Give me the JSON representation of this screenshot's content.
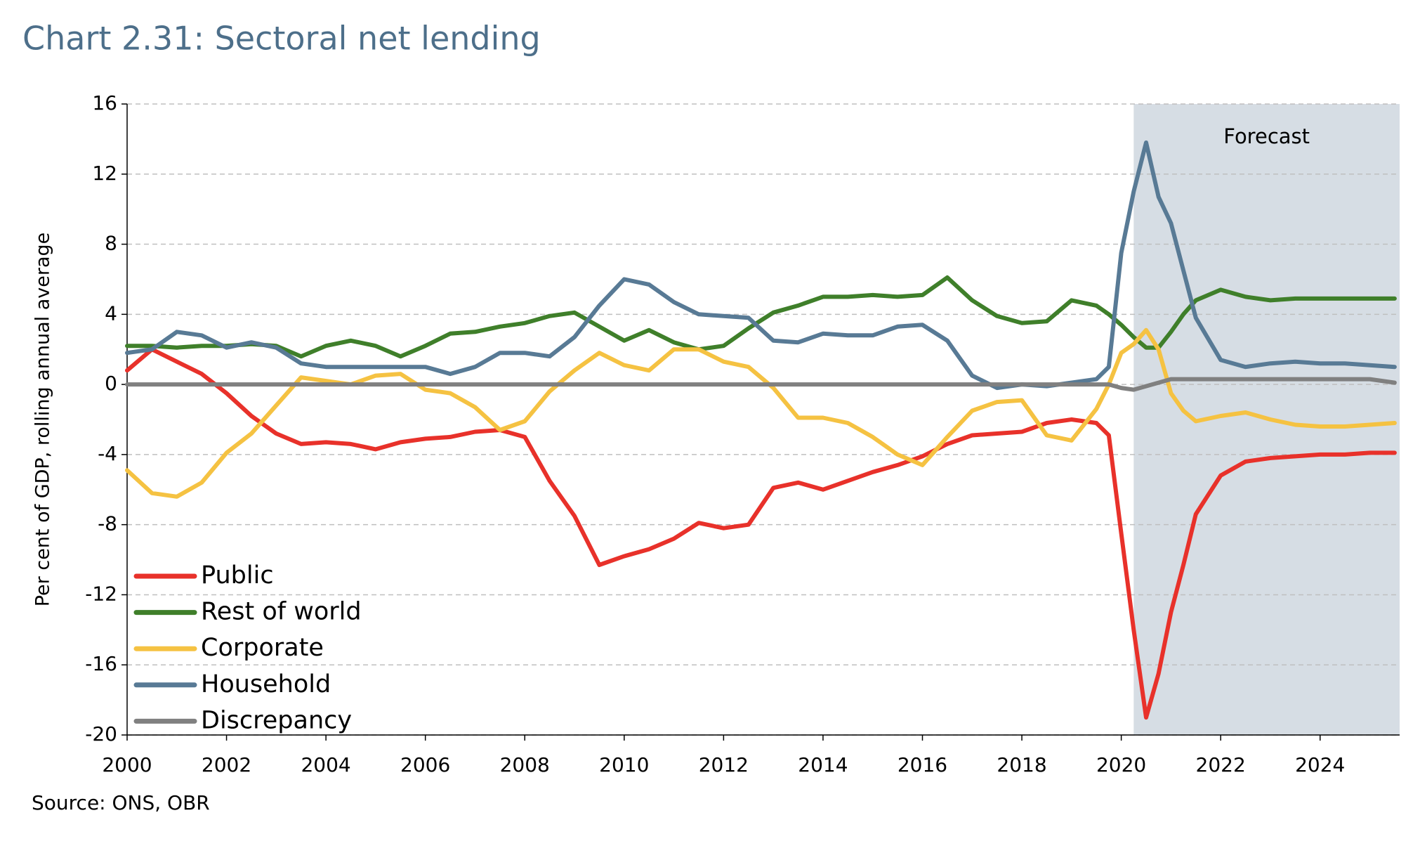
{
  "chart_data": {
    "type": "line",
    "title": "Chart 2.31: Sectoral net lending",
    "y_label": "Per cent of GDP,  rolling annual average",
    "source": "Source: ONS, OBR",
    "annotation": "Forecast",
    "forecast_start": 2020.25,
    "legend_position": "lower left",
    "grid": true,
    "xlim": [
      2000,
      2025.6
    ],
    "xticks": [
      2000,
      2002,
      2004,
      2006,
      2008,
      2010,
      2012,
      2014,
      2016,
      2018,
      2020,
      2022,
      2024
    ],
    "ylim": [
      -20,
      16
    ],
    "yticks": [
      -20,
      -16,
      -12,
      -8,
      -4,
      0,
      4,
      8,
      12,
      16
    ],
    "x": [
      2000,
      2000.5,
      2001,
      2001.5,
      2002,
      2002.5,
      2003,
      2003.5,
      2004,
      2004.5,
      2005,
      2005.5,
      2006,
      2006.5,
      2007,
      2007.5,
      2008,
      2008.5,
      2009,
      2009.5,
      2010,
      2010.5,
      2011,
      2011.5,
      2012,
      2012.5,
      2013,
      2013.5,
      2014,
      2014.5,
      2015,
      2015.5,
      2016,
      2016.5,
      2017,
      2017.5,
      2018,
      2018.5,
      2019,
      2019.5,
      2019.75,
      2020,
      2020.25,
      2020.5,
      2020.75,
      2021,
      2021.25,
      2021.5,
      2022,
      2022.5,
      2023,
      2023.5,
      2024,
      2024.5,
      2025,
      2025.5
    ],
    "series": [
      {
        "name": "Public",
        "color": "#e8312a",
        "values": [
          0.8,
          2.0,
          1.3,
          0.6,
          -0.5,
          -1.8,
          -2.8,
          -3.4,
          -3.3,
          -3.4,
          -3.7,
          -3.3,
          -3.1,
          -3.0,
          -2.7,
          -2.6,
          -3.0,
          -5.5,
          -7.5,
          -10.3,
          -9.8,
          -9.4,
          -8.8,
          -7.9,
          -8.2,
          -8.0,
          -5.9,
          -5.6,
          -6.0,
          -5.5,
          -5.0,
          -4.6,
          -4.1,
          -3.4,
          -2.9,
          -2.8,
          -2.7,
          -2.2,
          -2.0,
          -2.2,
          -2.9,
          -8.5,
          -14.0,
          -19.0,
          -16.5,
          -13.0,
          -10.3,
          -7.4,
          -5.2,
          -4.4,
          -4.2,
          -4.1,
          -4.0,
          -4.0,
          -3.9,
          -3.9
        ]
      },
      {
        "name": "Rest of world",
        "color": "#3f7f2a",
        "values": [
          2.2,
          2.2,
          2.1,
          2.2,
          2.2,
          2.3,
          2.2,
          1.6,
          2.2,
          2.5,
          2.2,
          1.6,
          2.2,
          2.9,
          3.0,
          3.3,
          3.5,
          3.9,
          4.1,
          3.3,
          2.5,
          3.1,
          2.4,
          2.0,
          2.2,
          3.2,
          4.1,
          4.5,
          5.0,
          5.0,
          5.1,
          5.0,
          5.1,
          6.1,
          4.8,
          3.9,
          3.5,
          3.6,
          4.8,
          4.5,
          4.0,
          3.4,
          2.7,
          2.1,
          2.1,
          3.0,
          4.0,
          4.8,
          5.4,
          5.0,
          4.8,
          4.9,
          4.9,
          4.9,
          4.9,
          4.9
        ]
      },
      {
        "name": "Corporate",
        "color": "#f5c242",
        "values": [
          -4.9,
          -6.2,
          -6.4,
          -5.6,
          -3.9,
          -2.8,
          -1.2,
          0.4,
          0.2,
          0.0,
          0.5,
          0.6,
          -0.3,
          -0.5,
          -1.3,
          -2.6,
          -2.1,
          -0.4,
          0.8,
          1.8,
          1.1,
          0.8,
          2.0,
          2.0,
          1.3,
          1.0,
          -0.2,
          -1.9,
          -1.9,
          -2.2,
          -3.0,
          -4.0,
          -4.6,
          -3.0,
          -1.5,
          -1.0,
          -0.9,
          -2.9,
          -3.2,
          -1.4,
          0.0,
          1.8,
          2.3,
          3.1,
          2.0,
          -0.5,
          -1.5,
          -2.1,
          -1.8,
          -1.6,
          -2.0,
          -2.3,
          -2.4,
          -2.4,
          -2.3,
          -2.2
        ]
      },
      {
        "name": "Household",
        "color": "#587a95",
        "values": [
          1.8,
          2.0,
          3.0,
          2.8,
          2.1,
          2.4,
          2.1,
          1.2,
          1.0,
          1.0,
          1.0,
          1.0,
          1.0,
          0.6,
          1.0,
          1.8,
          1.8,
          1.6,
          2.7,
          4.5,
          6.0,
          5.7,
          4.7,
          4.0,
          3.9,
          3.8,
          2.5,
          2.4,
          2.9,
          2.8,
          2.8,
          3.3,
          3.4,
          2.5,
          0.5,
          -0.2,
          0.0,
          -0.1,
          0.1,
          0.3,
          1.0,
          7.5,
          11.0,
          13.8,
          10.7,
          9.2,
          6.5,
          3.8,
          1.4,
          1.0,
          1.2,
          1.3,
          1.2,
          1.2,
          1.1,
          1.0
        ]
      },
      {
        "name": "Discrepancy",
        "color": "#808080",
        "values": [
          0,
          0,
          0,
          0,
          0,
          0,
          0,
          0,
          0,
          0,
          0,
          0,
          0,
          0,
          0,
          0,
          0,
          0,
          0,
          0,
          0,
          0,
          0,
          0,
          0,
          0,
          0,
          0,
          0,
          0,
          0,
          0,
          0,
          0,
          0,
          0,
          0,
          0,
          0,
          0,
          0,
          -0.2,
          -0.3,
          -0.1,
          0.1,
          0.3,
          0.3,
          0.3,
          0.3,
          0.3,
          0.3,
          0.3,
          0.3,
          0.3,
          0.3,
          0.1
        ]
      }
    ]
  }
}
